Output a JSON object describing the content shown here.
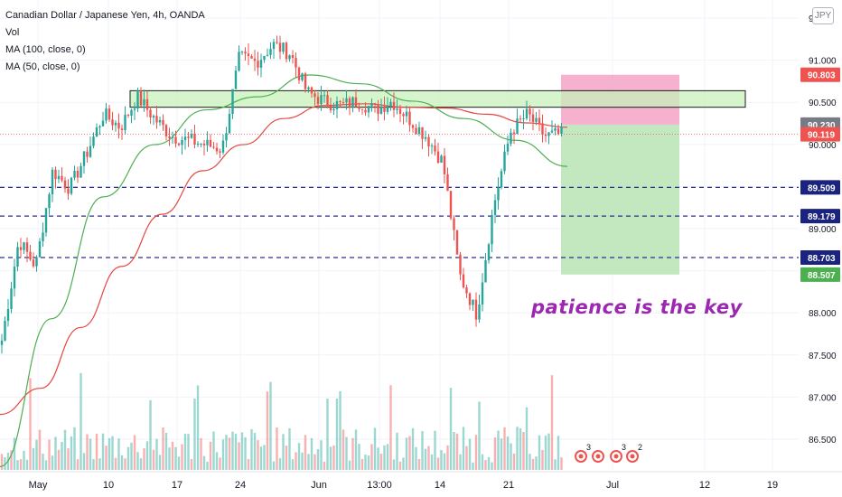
{
  "legend": {
    "title": "Canadian Dollar / Japanese Yen, 4h, OANDA",
    "vol": "Vol",
    "ma100": "MA (100, close, 0)",
    "ma50": "MA (50, close, 0)"
  },
  "currency_badge": "JPY",
  "annotation": "patience is the key",
  "colors": {
    "up": "#26a69a",
    "down": "#ef5350",
    "ma100": "#e5473f",
    "ma50": "#4caf50",
    "annotation": "#9c27b0",
    "dash": "#2e2e8f",
    "zone_fill": "#c8f2bb",
    "stop_fill": "#f5a3c7",
    "target_fill": "#b9e4b5"
  },
  "chart_data": {
    "type": "candlestick",
    "symbol": "CADJPY",
    "interval": "4h",
    "x_ticks": [
      "May",
      "10",
      "17",
      "24",
      "Jun",
      "13:00",
      "14",
      "21",
      "Jul",
      "12",
      "19"
    ],
    "y_ticks": [
      "9",
      "91.000",
      "90.500",
      "90.000",
      "89.500",
      "89.000",
      "88.500",
      "88.000",
      "87.500",
      "87.000",
      "86.500"
    ],
    "ylim": [
      86.2,
      91.6
    ],
    "price_labels": [
      {
        "value": "90.803",
        "color": "#ef5350"
      },
      {
        "value": "90.230",
        "color": "#787b86"
      },
      {
        "value": "90.119",
        "color": "#ef5350"
      },
      {
        "value": "89.509",
        "color": "#1a237e"
      },
      {
        "value": "89.179",
        "color": "#1a237e"
      },
      {
        "value": "88.703",
        "color": "#1a237e"
      },
      {
        "value": "88.507",
        "color": "#4caf50"
      }
    ],
    "horizontal_levels": [
      89.509,
      89.179,
      88.703
    ],
    "current_price": 90.119,
    "resistance_zone": [
      90.43,
      90.62
    ],
    "position": {
      "stop": 90.803,
      "entry": 90.23,
      "target": 88.507
    },
    "close_anchors": [
      87.75,
      88.9,
      88.6,
      89.7,
      89.5,
      89.9,
      90.35,
      90.2,
      90.55,
      90.3,
      90.1,
      90.05,
      90.0,
      89.95,
      91.0,
      90.95,
      91.15,
      91.05,
      90.6,
      90.5,
      90.45,
      90.5,
      90.4,
      90.5,
      90.3,
      90.1,
      89.8,
      88.5,
      88.05,
      89.3,
      90.15,
      90.35,
      90.1,
      90.12
    ],
    "candle_count": 178,
    "ma100_anchors": [
      86.9,
      87.2,
      87.9,
      88.6,
      89.2,
      89.7,
      90.0,
      90.3,
      90.45,
      90.47,
      90.43,
      90.42,
      90.35,
      90.25,
      90.2
    ],
    "ma50_anchors": [
      86.3,
      88.0,
      89.4,
      90.0,
      90.4,
      90.55,
      90.8,
      90.7,
      90.5,
      90.3,
      90.05,
      89.75
    ]
  }
}
